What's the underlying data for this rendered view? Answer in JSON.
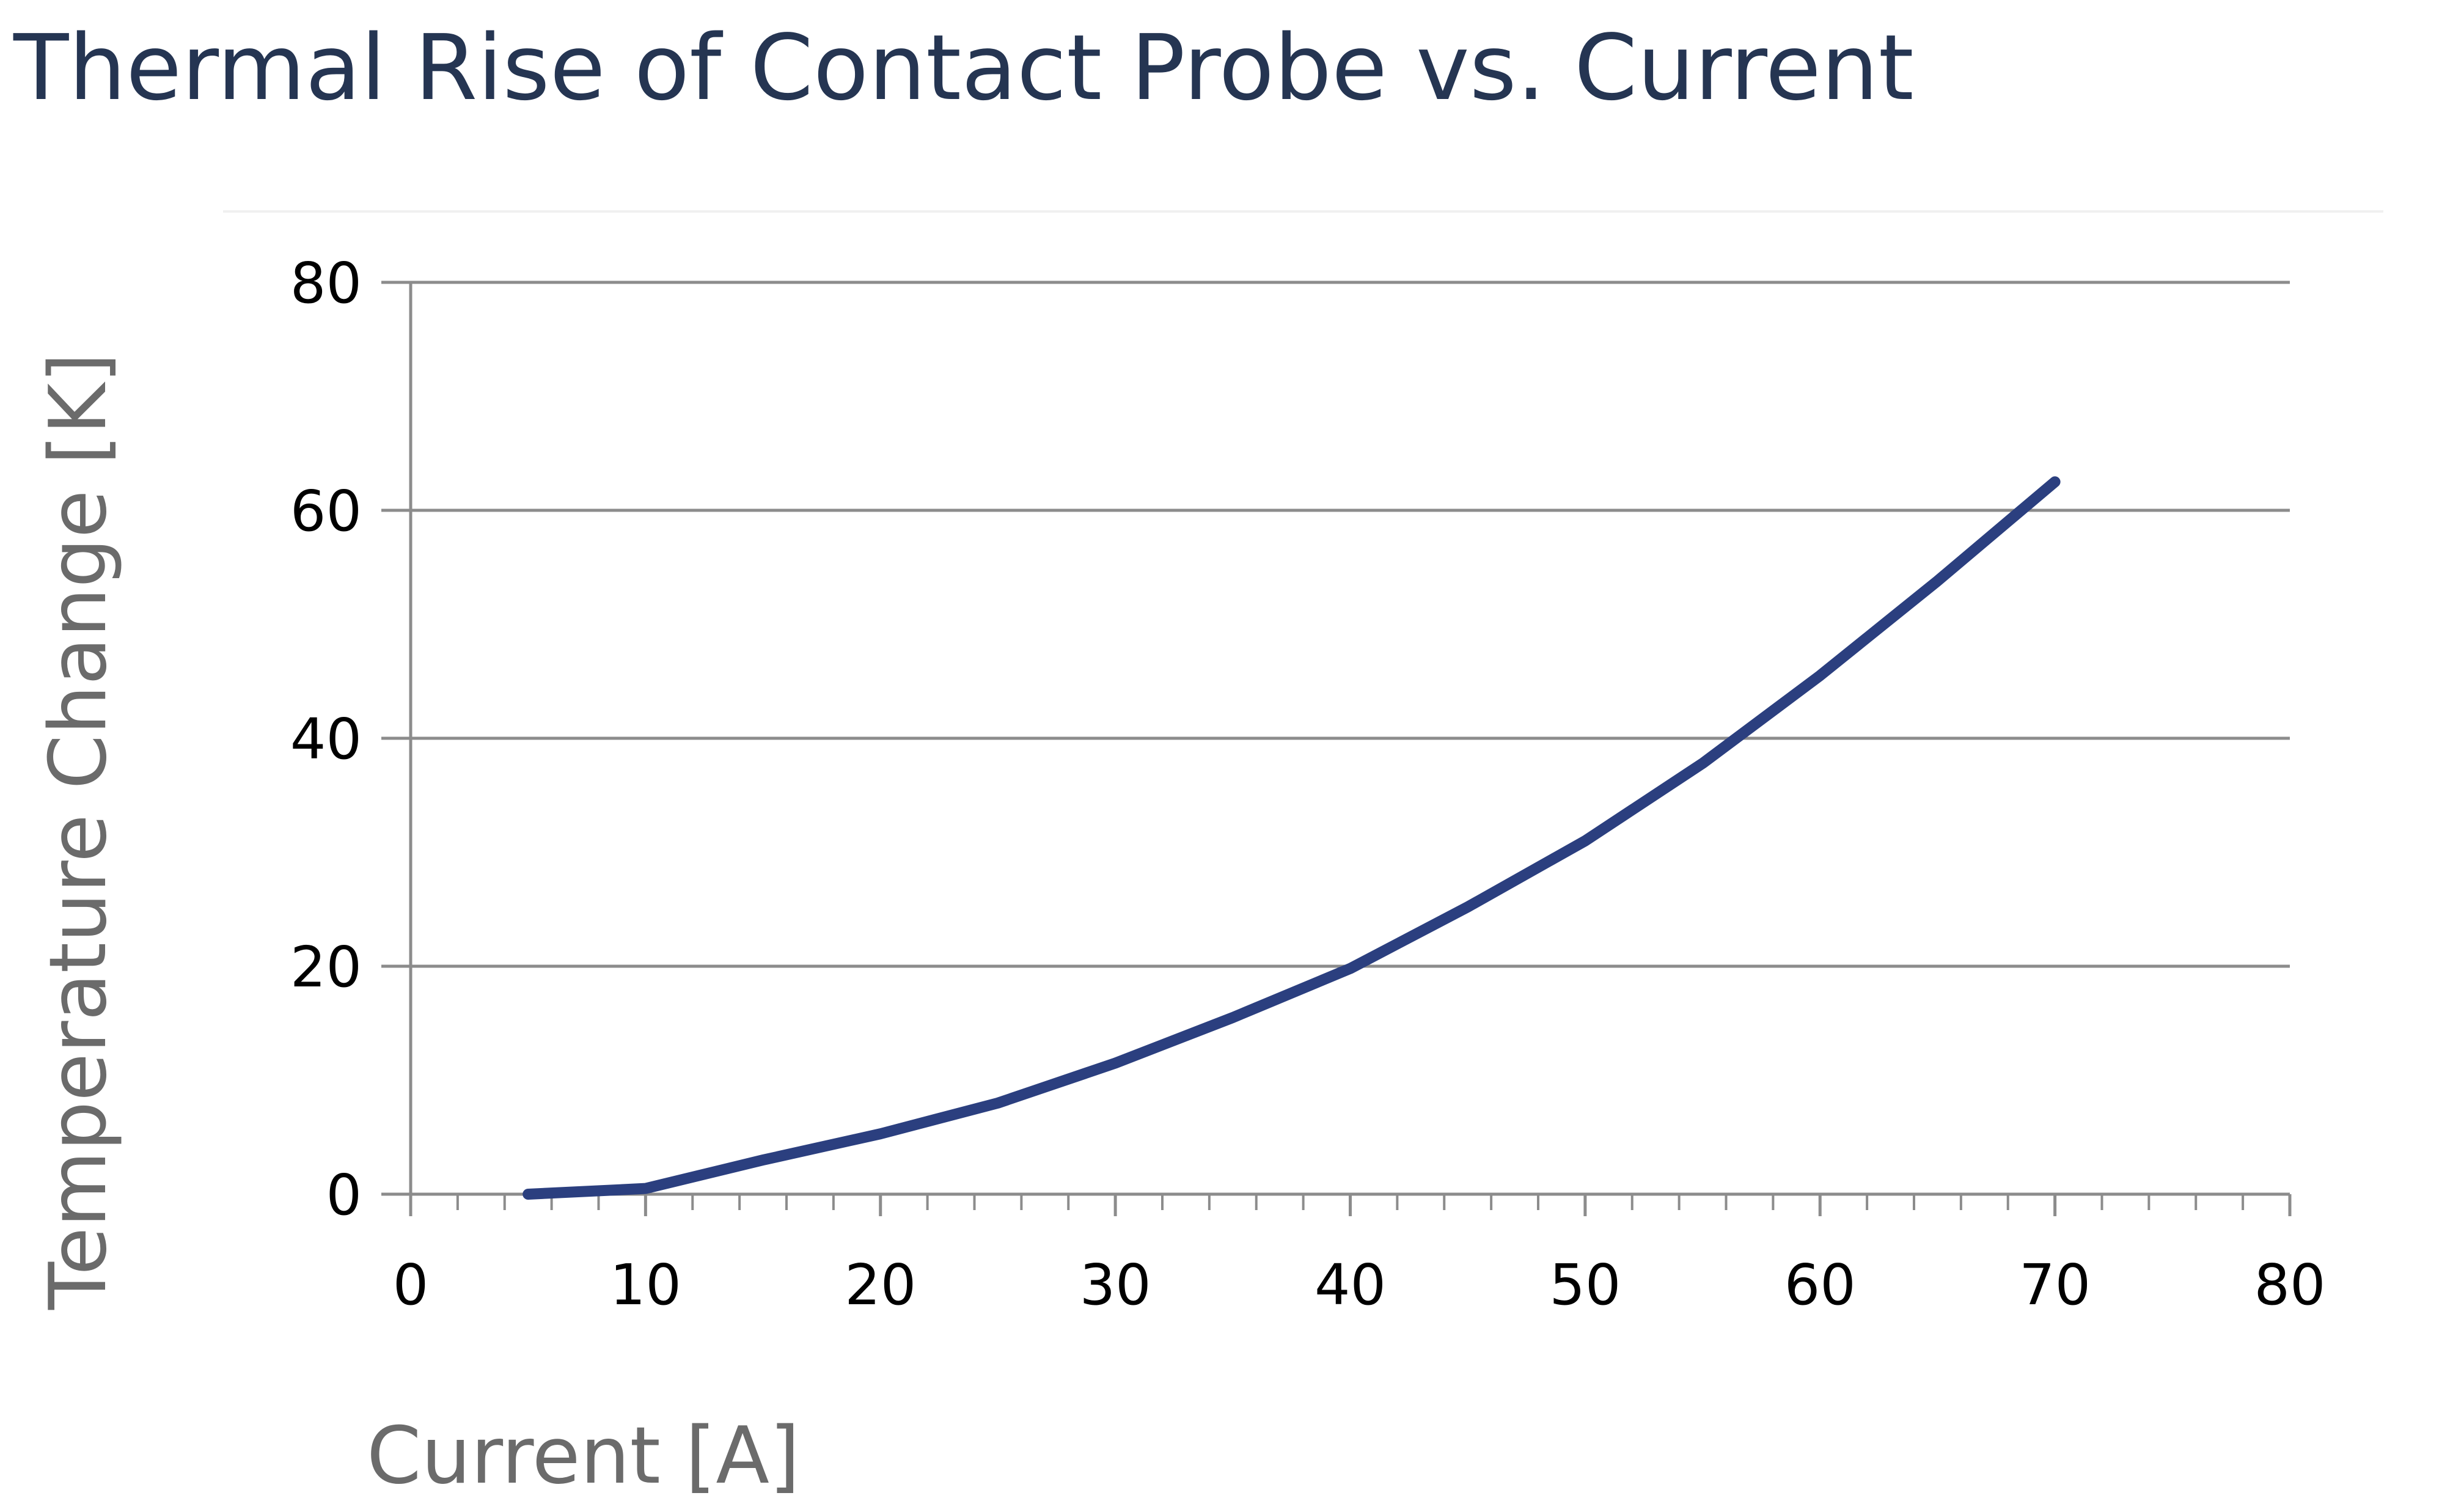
{
  "chart_data": {
    "type": "line",
    "title": "Thermal Rise of Contact Probe vs. Current",
    "xlabel": "Current [A]",
    "ylabel": "Temperature Change [K]",
    "xlim": [
      0,
      80
    ],
    "ylim": [
      0,
      80
    ],
    "xticks": [
      "0",
      "10",
      "20",
      "30",
      "40",
      "50",
      "60",
      "70",
      "80"
    ],
    "yticks": [
      "0",
      "20",
      "40",
      "60",
      "80"
    ],
    "grid": "horizontal",
    "legend": "none",
    "series": [
      {
        "color": "#2b3f7f",
        "x": [
          5,
          10,
          15,
          20,
          25,
          30,
          35,
          40,
          45,
          50,
          55,
          60,
          65,
          70
        ],
        "y": [
          0,
          0.5,
          3,
          5.3,
          8,
          11.5,
          15.5,
          19.8,
          25.2,
          31,
          37.8,
          45.5,
          53.8,
          62.5
        ]
      }
    ]
  }
}
